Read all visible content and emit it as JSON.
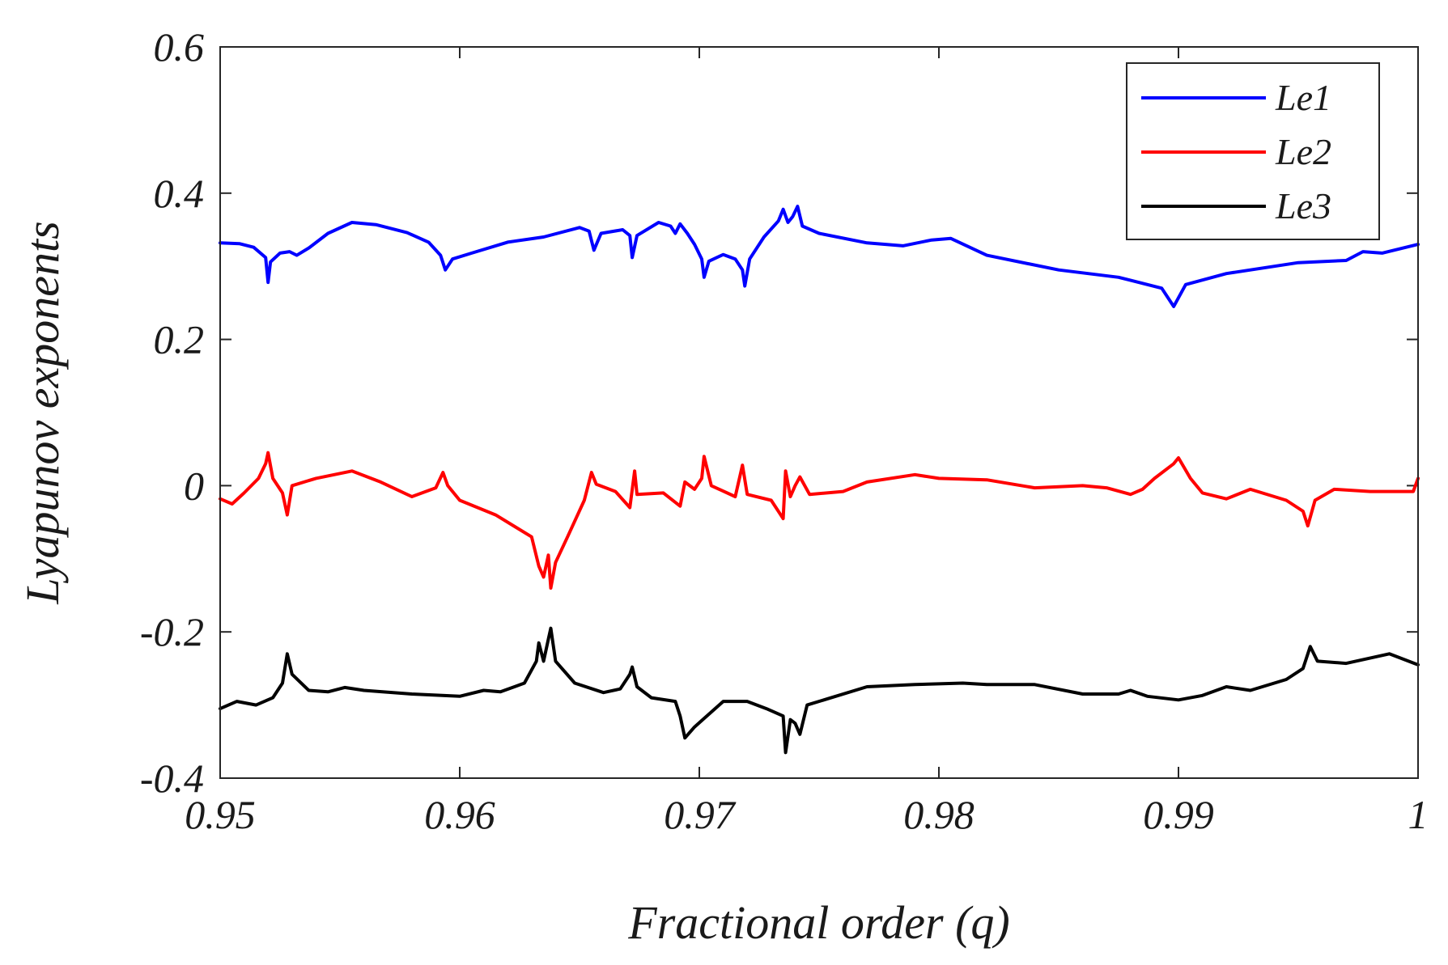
{
  "chart_data": {
    "type": "line",
    "title": "",
    "xlabel": "Fractional order (q)",
    "ylabel": "Lyapunov exponents",
    "xlim": [
      0.95,
      1.0
    ],
    "ylim": [
      -0.4,
      0.6
    ],
    "xticks": [
      0.95,
      0.96,
      0.97,
      0.98,
      0.99,
      1.0
    ],
    "xtick_labels": [
      "0.95",
      "0.96",
      "0.97",
      "0.98",
      "0.99",
      "1"
    ],
    "yticks": [
      -0.4,
      -0.2,
      0,
      0.2,
      0.4,
      0.6
    ],
    "ytick_labels": [
      "-0.4",
      "-0.2",
      "0",
      "0.2",
      "0.4",
      "0.6"
    ],
    "grid": false,
    "legend_position": "top-right",
    "series": [
      {
        "name": "Le1",
        "color": "#0000ff",
        "points": [
          [
            0.95,
            0.332
          ],
          [
            0.9508,
            0.331
          ],
          [
            0.9514,
            0.326
          ],
          [
            0.9519,
            0.312
          ],
          [
            0.952,
            0.278
          ],
          [
            0.9521,
            0.306
          ],
          [
            0.9525,
            0.318
          ],
          [
            0.9529,
            0.32
          ],
          [
            0.9532,
            0.315
          ],
          [
            0.9537,
            0.325
          ],
          [
            0.9545,
            0.345
          ],
          [
            0.9555,
            0.36
          ],
          [
            0.9565,
            0.357
          ],
          [
            0.9578,
            0.346
          ],
          [
            0.9587,
            0.333
          ],
          [
            0.9592,
            0.315
          ],
          [
            0.9594,
            0.295
          ],
          [
            0.9597,
            0.31
          ],
          [
            0.9605,
            0.318
          ],
          [
            0.962,
            0.333
          ],
          [
            0.9635,
            0.34
          ],
          [
            0.965,
            0.353
          ],
          [
            0.9654,
            0.348
          ],
          [
            0.9656,
            0.322
          ],
          [
            0.9659,
            0.345
          ],
          [
            0.9668,
            0.35
          ],
          [
            0.9671,
            0.342
          ],
          [
            0.9672,
            0.312
          ],
          [
            0.9674,
            0.342
          ],
          [
            0.9683,
            0.36
          ],
          [
            0.9688,
            0.355
          ],
          [
            0.969,
            0.345
          ],
          [
            0.9692,
            0.358
          ],
          [
            0.9695,
            0.345
          ],
          [
            0.9698,
            0.33
          ],
          [
            0.9701,
            0.31
          ],
          [
            0.9702,
            0.285
          ],
          [
            0.9704,
            0.307
          ],
          [
            0.971,
            0.316
          ],
          [
            0.9715,
            0.31
          ],
          [
            0.9718,
            0.295
          ],
          [
            0.9719,
            0.273
          ],
          [
            0.9721,
            0.31
          ],
          [
            0.9727,
            0.34
          ],
          [
            0.9733,
            0.362
          ],
          [
            0.9735,
            0.378
          ],
          [
            0.9737,
            0.36
          ],
          [
            0.9739,
            0.368
          ],
          [
            0.9741,
            0.382
          ],
          [
            0.9743,
            0.355
          ],
          [
            0.975,
            0.345
          ],
          [
            0.977,
            0.332
          ],
          [
            0.9785,
            0.328
          ],
          [
            0.9797,
            0.336
          ],
          [
            0.9805,
            0.338
          ],
          [
            0.982,
            0.315
          ],
          [
            0.985,
            0.295
          ],
          [
            0.9875,
            0.285
          ],
          [
            0.9893,
            0.27
          ],
          [
            0.9898,
            0.245
          ],
          [
            0.9903,
            0.275
          ],
          [
            0.992,
            0.29
          ],
          [
            0.995,
            0.305
          ],
          [
            0.997,
            0.308
          ],
          [
            0.9977,
            0.32
          ],
          [
            0.9985,
            0.318
          ],
          [
            0.999,
            0.322
          ],
          [
            1.0,
            0.33
          ]
        ]
      },
      {
        "name": "Le2",
        "color": "#ff0000",
        "points": [
          [
            0.95,
            -0.018
          ],
          [
            0.9505,
            -0.025
          ],
          [
            0.951,
            -0.01
          ],
          [
            0.9516,
            0.01
          ],
          [
            0.9519,
            0.03
          ],
          [
            0.952,
            0.045
          ],
          [
            0.9522,
            0.01
          ],
          [
            0.9526,
            -0.01
          ],
          [
            0.9528,
            -0.04
          ],
          [
            0.953,
            0.0
          ],
          [
            0.954,
            0.01
          ],
          [
            0.9555,
            0.02
          ],
          [
            0.9567,
            0.005
          ],
          [
            0.958,
            -0.015
          ],
          [
            0.959,
            -0.003
          ],
          [
            0.9593,
            0.018
          ],
          [
            0.9595,
            0.0
          ],
          [
            0.96,
            -0.02
          ],
          [
            0.9615,
            -0.04
          ],
          [
            0.963,
            -0.07
          ],
          [
            0.9633,
            -0.11
          ],
          [
            0.9635,
            -0.125
          ],
          [
            0.9637,
            -0.095
          ],
          [
            0.9638,
            -0.14
          ],
          [
            0.964,
            -0.105
          ],
          [
            0.9645,
            -0.07
          ],
          [
            0.9652,
            -0.02
          ],
          [
            0.9655,
            0.018
          ],
          [
            0.9657,
            0.002
          ],
          [
            0.9665,
            -0.008
          ],
          [
            0.9671,
            -0.03
          ],
          [
            0.9673,
            0.02
          ],
          [
            0.9674,
            -0.012
          ],
          [
            0.9685,
            -0.01
          ],
          [
            0.9692,
            -0.028
          ],
          [
            0.9694,
            0.005
          ],
          [
            0.9698,
            -0.005
          ],
          [
            0.9701,
            0.01
          ],
          [
            0.9702,
            0.04
          ],
          [
            0.9705,
            0.0
          ],
          [
            0.9715,
            -0.015
          ],
          [
            0.9718,
            0.028
          ],
          [
            0.972,
            -0.012
          ],
          [
            0.973,
            -0.02
          ],
          [
            0.9735,
            -0.045
          ],
          [
            0.9736,
            0.02
          ],
          [
            0.9738,
            -0.015
          ],
          [
            0.974,
            0.0
          ],
          [
            0.9742,
            0.012
          ],
          [
            0.9746,
            -0.012
          ],
          [
            0.976,
            -0.008
          ],
          [
            0.977,
            0.005
          ],
          [
            0.979,
            0.015
          ],
          [
            0.98,
            0.01
          ],
          [
            0.982,
            0.008
          ],
          [
            0.984,
            -0.003
          ],
          [
            0.986,
            0.0
          ],
          [
            0.987,
            -0.003
          ],
          [
            0.988,
            -0.012
          ],
          [
            0.9885,
            -0.005
          ],
          [
            0.989,
            0.01
          ],
          [
            0.9898,
            0.03
          ],
          [
            0.99,
            0.038
          ],
          [
            0.9905,
            0.01
          ],
          [
            0.991,
            -0.01
          ],
          [
            0.992,
            -0.018
          ],
          [
            0.993,
            -0.005
          ],
          [
            0.9945,
            -0.02
          ],
          [
            0.9952,
            -0.035
          ],
          [
            0.9954,
            -0.055
          ],
          [
            0.9957,
            -0.02
          ],
          [
            0.9965,
            -0.005
          ],
          [
            0.998,
            -0.008
          ],
          [
            0.9998,
            -0.008
          ],
          [
            1.0,
            0.01
          ]
        ]
      },
      {
        "name": "Le3",
        "color": "#000000",
        "points": [
          [
            0.95,
            -0.305
          ],
          [
            0.9507,
            -0.295
          ],
          [
            0.9515,
            -0.3
          ],
          [
            0.9522,
            -0.29
          ],
          [
            0.9526,
            -0.27
          ],
          [
            0.9528,
            -0.23
          ],
          [
            0.953,
            -0.258
          ],
          [
            0.9537,
            -0.28
          ],
          [
            0.9545,
            -0.282
          ],
          [
            0.9552,
            -0.276
          ],
          [
            0.956,
            -0.28
          ],
          [
            0.958,
            -0.285
          ],
          [
            0.96,
            -0.288
          ],
          [
            0.961,
            -0.28
          ],
          [
            0.9617,
            -0.282
          ],
          [
            0.9627,
            -0.27
          ],
          [
            0.9632,
            -0.24
          ],
          [
            0.9633,
            -0.215
          ],
          [
            0.9635,
            -0.24
          ],
          [
            0.9637,
            -0.21
          ],
          [
            0.9638,
            -0.195
          ],
          [
            0.964,
            -0.24
          ],
          [
            0.9648,
            -0.27
          ],
          [
            0.966,
            -0.283
          ],
          [
            0.9667,
            -0.278
          ],
          [
            0.9671,
            -0.258
          ],
          [
            0.9672,
            -0.248
          ],
          [
            0.9674,
            -0.275
          ],
          [
            0.968,
            -0.29
          ],
          [
            0.969,
            -0.295
          ],
          [
            0.9692,
            -0.315
          ],
          [
            0.9694,
            -0.345
          ],
          [
            0.9698,
            -0.33
          ],
          [
            0.971,
            -0.295
          ],
          [
            0.972,
            -0.295
          ],
          [
            0.9728,
            -0.305
          ],
          [
            0.9735,
            -0.315
          ],
          [
            0.9736,
            -0.365
          ],
          [
            0.9738,
            -0.32
          ],
          [
            0.974,
            -0.325
          ],
          [
            0.9742,
            -0.34
          ],
          [
            0.9745,
            -0.3
          ],
          [
            0.9755,
            -0.29
          ],
          [
            0.977,
            -0.275
          ],
          [
            0.979,
            -0.272
          ],
          [
            0.981,
            -0.27
          ],
          [
            0.982,
            -0.272
          ],
          [
            0.984,
            -0.272
          ],
          [
            0.986,
            -0.285
          ],
          [
            0.9875,
            -0.285
          ],
          [
            0.988,
            -0.28
          ],
          [
            0.9887,
            -0.288
          ],
          [
            0.99,
            -0.293
          ],
          [
            0.991,
            -0.287
          ],
          [
            0.992,
            -0.275
          ],
          [
            0.993,
            -0.28
          ],
          [
            0.9945,
            -0.265
          ],
          [
            0.9952,
            -0.25
          ],
          [
            0.9955,
            -0.22
          ],
          [
            0.9958,
            -0.24
          ],
          [
            0.997,
            -0.243
          ],
          [
            0.9988,
            -0.23
          ],
          [
            1.0,
            -0.245
          ]
        ]
      }
    ]
  }
}
